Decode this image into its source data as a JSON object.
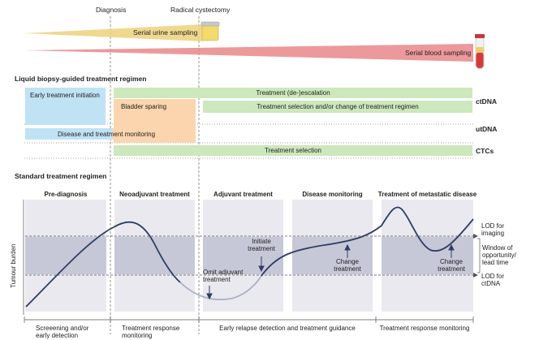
{
  "header": {
    "diagnosis": "Diagnosis",
    "radical_cystectomy": "Radical cystectomy",
    "urine_sampling": "Serial urine sampling",
    "blood_sampling": "Serial blood sampling"
  },
  "liquid_biopsy": {
    "title": "Liquid biopsy-guided treatment regimen",
    "early_treatment": "Early treatment initiation",
    "bladder_sparing": "Bladder sparing",
    "deescalation": "Treatment (de-)escalation",
    "treatment_selection_change": "Treatment selection and/or change of treatment regimen",
    "disease_monitoring": "Disease and treatment monitoring",
    "treatment_selection": "Treatment selection",
    "ctdna": "ctDNA",
    "utdna": "utDNA",
    "ctcs": "CTCs"
  },
  "standard": {
    "title": "Standard treatment regimen",
    "phases": [
      "Pre-diagnosis",
      "Neoadjuvant treatment",
      "Adjuvant treatment",
      "Disease monitoring",
      "Treatment of metastatic disease"
    ],
    "y_axis": "Tumour burden",
    "initiate_treatment": "Initiate\ntreatment",
    "omit_adjuvant": "Omit adjuvant\ntreatment",
    "change_treatment_1": "Change\ntreatment",
    "change_treatment_2": "Change\ntreatment",
    "lod_imaging": "LOD for\nimaging",
    "window": "Window of\nopportunity/\nlead time",
    "lod_ctdna": "LOD for\nctDNA",
    "bottom": [
      "Screeening and/or\nearly detection",
      "Treatment response\nmonitoring",
      "Early relapse detection and treatment guidance",
      "Treatment response monitoring"
    ]
  },
  "colors": {
    "urine": "#ecd27a",
    "blood": "#e9878a",
    "blue_box": "#bfe3f5",
    "orange_box": "#fad5ae",
    "green_box": "#cce8bc",
    "phase_bg": "#e9e9ef",
    "window_band": "#c6c8d8",
    "curve": "#2f3d63",
    "curve_faint": "#aab0c8"
  }
}
